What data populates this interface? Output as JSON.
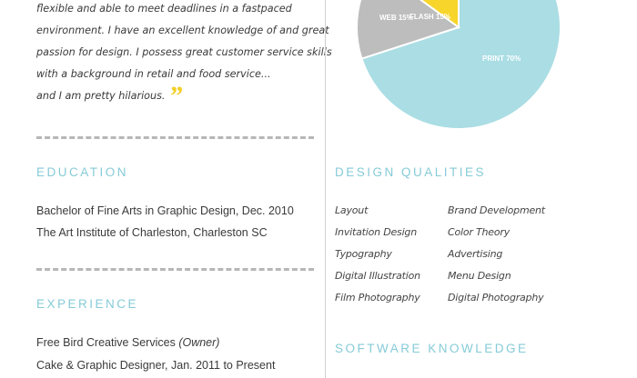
{
  "intro": {
    "lines": [
      "flexible and able to meet deadlines in a fastpaced",
      "environment. I have an excellent knowledge of and great",
      "passion for design. I possess great customer service skills",
      "with a background in retail and food service...",
      "and I am pretty hilarious."
    ],
    "quote_glyph": "”"
  },
  "education": {
    "heading": "EDUCATION",
    "degree": "Bachelor of Fine Arts in Graphic Design,  Dec. 2010",
    "school": "The Art Institute of Charleston, Charleston SC"
  },
  "experience": {
    "heading": "EXPERIENCE",
    "company": "Free Bird Creative Services",
    "company_note": "(Owner)",
    "role": "Cake & Graphic Designer, Jan. 2011 to Present"
  },
  "design_qualities": {
    "heading": "DESIGN QUALITIES",
    "left": [
      "Layout",
      "Invitation Design",
      "Typography",
      "Digital Illustration",
      "Film Photography"
    ],
    "right": [
      "Brand Development",
      "Color Theory",
      "Advertising",
      "Menu Design",
      "Digital Photography"
    ]
  },
  "software": {
    "heading": "SOFTWARE KNOWLEDGE"
  },
  "colors": {
    "print": "#aadde4",
    "web": "#bdbdbd",
    "flash": "#f7d52b",
    "heading": "#86cbd8"
  },
  "chart_data": {
    "type": "pie",
    "title": "",
    "slices": [
      {
        "label": "PRINT 70%",
        "value": 70,
        "color": "#aadde4"
      },
      {
        "label": "WEB 15%",
        "value": 15,
        "color": "#bdbdbd"
      },
      {
        "label": "FLASH 15%",
        "value": 15,
        "color": "#f7d52b"
      }
    ]
  }
}
